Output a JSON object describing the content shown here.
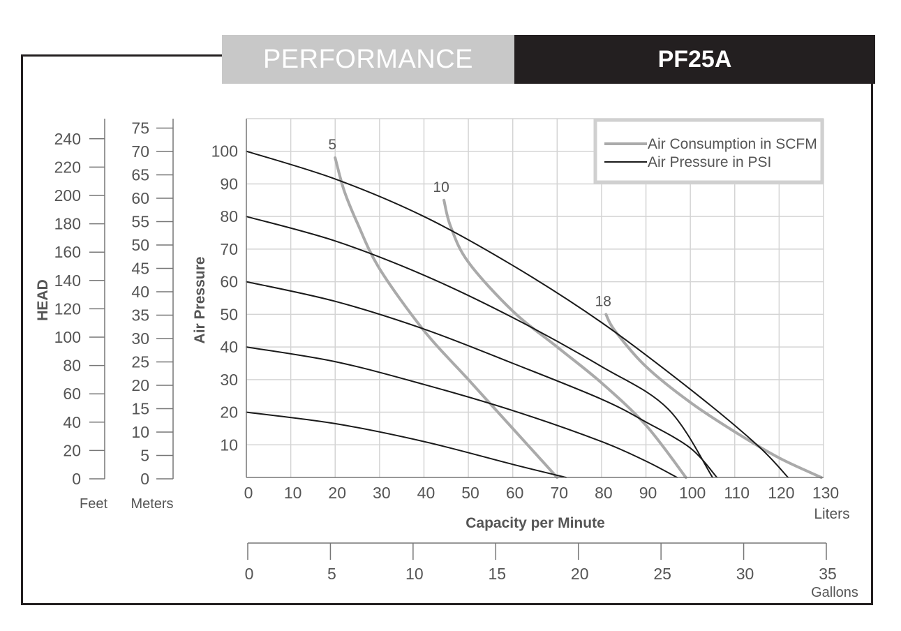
{
  "header": {
    "left_label": "PERFORMANCE",
    "model": "PF25A"
  },
  "colors": {
    "pressure_line": "#1a1a1a",
    "air_line": "#aaaaaa",
    "grid": "#d4d4d4",
    "header_dark": "#231f20",
    "header_light": "#c8c8c8"
  },
  "head_scale": {
    "title": "HEAD",
    "feet_label": "Feet",
    "meters_label": "Meters",
    "feet_ticks": [
      0,
      20,
      40,
      60,
      80,
      100,
      120,
      140,
      160,
      180,
      200,
      220,
      240
    ],
    "meters_ticks": [
      0,
      5,
      10,
      15,
      20,
      25,
      30,
      35,
      40,
      45,
      50,
      55,
      60,
      65,
      70,
      75
    ]
  },
  "gallons_axis": {
    "unit_label": "Gallons",
    "ticks": [
      0,
      5,
      10,
      15,
      20,
      25,
      30,
      35
    ]
  },
  "chart_data": {
    "type": "line",
    "xlabel": "Capacity per Minute",
    "x_unit_label": "Liters",
    "ylabel": "Air Pressure",
    "xlim": [
      0,
      130
    ],
    "ylim": [
      0,
      110
    ],
    "x_ticks": [
      0,
      10,
      20,
      30,
      40,
      50,
      60,
      70,
      80,
      90,
      100,
      110,
      120,
      130
    ],
    "y_ticks": [
      10,
      20,
      30,
      40,
      50,
      60,
      70,
      80,
      90,
      100
    ],
    "grid": true,
    "legend": {
      "placement": "top-right",
      "entries": [
        {
          "label": "Air Consumption in SCFM",
          "kind": "air"
        },
        {
          "label": "Air Pressure in PSI",
          "kind": "pressure"
        }
      ]
    },
    "series": [
      {
        "kind": "pressure",
        "x": [
          0,
          20,
          40,
          60,
          80,
          100,
          115,
          122
        ],
        "y": [
          100,
          91.5,
          80,
          65,
          47.5,
          27,
          10,
          0
        ]
      },
      {
        "kind": "pressure",
        "x": [
          0,
          20,
          40,
          60,
          80,
          95,
          105
        ],
        "y": [
          80,
          72.5,
          62,
          49,
          34,
          21,
          0
        ]
      },
      {
        "kind": "pressure",
        "x": [
          0,
          20,
          40,
          60,
          80,
          90,
          100,
          106
        ],
        "y": [
          60,
          54,
          45.5,
          35,
          24,
          17,
          9,
          0
        ]
      },
      {
        "kind": "pressure",
        "x": [
          0,
          20,
          40,
          60,
          80,
          90,
          97
        ],
        "y": [
          40,
          35.5,
          28.5,
          20.5,
          11,
          5,
          0
        ]
      },
      {
        "kind": "pressure",
        "x": [
          0,
          20,
          40,
          60,
          72
        ],
        "y": [
          20,
          16.5,
          11,
          4,
          0
        ]
      },
      {
        "kind": "air",
        "label": "5",
        "x": [
          20,
          22,
          25,
          30,
          40,
          50,
          60,
          70
        ],
        "y": [
          98,
          88,
          78,
          64,
          45,
          30,
          15,
          0
        ]
      },
      {
        "kind": "air",
        "label": "10",
        "x": [
          44.5,
          46,
          50,
          60,
          70,
          80,
          90,
          99
        ],
        "y": [
          85,
          77,
          66,
          51,
          40,
          29,
          16,
          0
        ]
      },
      {
        "kind": "air",
        "label": "18",
        "x": [
          81,
          83,
          90,
          100,
          110,
          120,
          129.5
        ],
        "y": [
          50,
          45,
          34,
          23,
          14,
          6,
          0
        ]
      }
    ]
  }
}
